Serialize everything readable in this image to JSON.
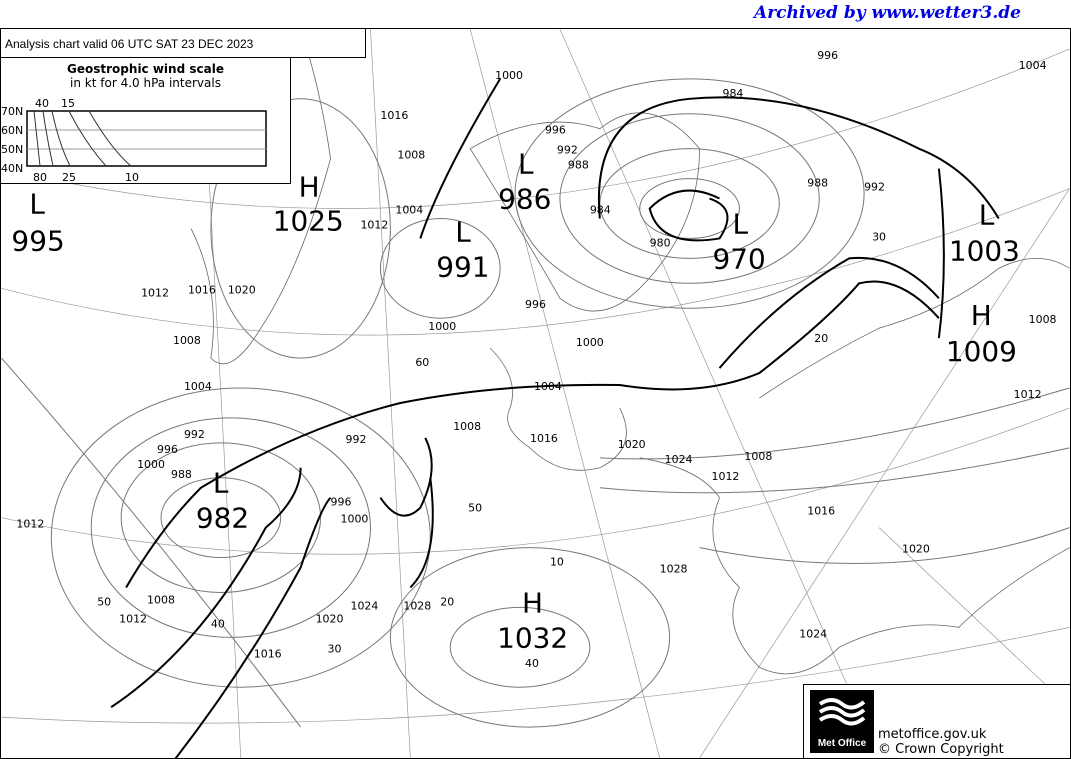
{
  "header": {
    "archived": "Archived by www.wetter3.de"
  },
  "chart": {
    "title": "Analysis chart  valid 06 UTC SAT 23  DEC 2023"
  },
  "wind_scale": {
    "title": "Geostrophic wind scale",
    "subtitle": "in kt for 4.0 hPa intervals",
    "lat_labels": [
      "70N",
      "60N",
      "50N",
      "40N"
    ],
    "top_labels": [
      "40",
      "15"
    ],
    "bottom_labels": [
      "80",
      "25",
      "10"
    ]
  },
  "systems": [
    {
      "type": "L",
      "value": "995"
    },
    {
      "type": "H",
      "value": "1025"
    },
    {
      "type": "L",
      "value": "991"
    },
    {
      "type": "L",
      "value": "986"
    },
    {
      "type": "L",
      "value": "970"
    },
    {
      "type": "L",
      "value": "1003"
    },
    {
      "type": "H",
      "value": "1009"
    },
    {
      "type": "L",
      "value": "982"
    },
    {
      "type": "H",
      "value": "1032"
    }
  ],
  "isobar_labels": [
    "996",
    "1004",
    "984",
    "1000",
    "1016",
    "1012",
    "1008",
    "1004",
    "996",
    "992",
    "988",
    "984",
    "980",
    "988",
    "992",
    "1000",
    "1012",
    "1016",
    "1020",
    "1008",
    "1004",
    "996",
    "1000",
    "1004",
    "1016",
    "1020",
    "1024",
    "1012",
    "1008",
    "1008",
    "1016",
    "1020",
    "1012",
    "996",
    "992",
    "988",
    "1000",
    "996",
    "992",
    "1008",
    "1012",
    "1024",
    "1028",
    "1020",
    "1016",
    "1028",
    "1024",
    "1000",
    "1012",
    "1008"
  ],
  "wind_labels": [
    "60",
    "50",
    "40",
    "30",
    "20",
    "10",
    "50",
    "40",
    "30",
    "20"
  ],
  "footer": {
    "logo": "Met Office",
    "site": "metoffice.gov.uk",
    "copyright": "© Crown Copyright"
  }
}
